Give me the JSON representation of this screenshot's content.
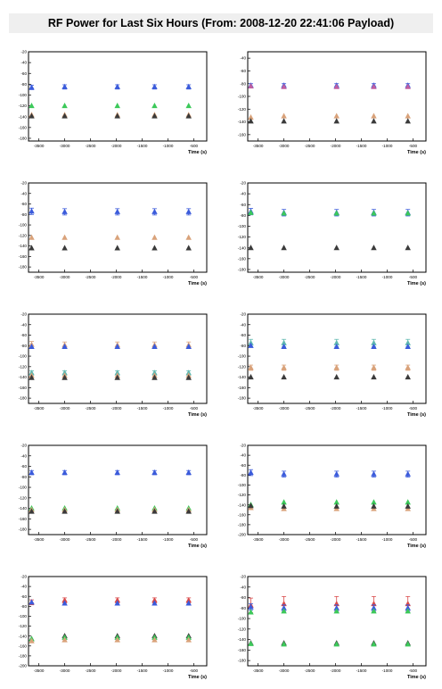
{
  "title": "RF Power for Last Six Hours (From: 2008-12-20 22:41:06 Payload)",
  "colors": {
    "blue": "#3b5bdb",
    "green": "#3cc95a",
    "orange": "#d9a27a",
    "dark": "#3a3a3a",
    "red": "#d94a4a",
    "teal": "#5fb8b0",
    "errbar_teal": "#4fb0a8",
    "errbar_red": "#c04040"
  },
  "chart_data": [
    {
      "type": "scatter",
      "xlabel": "Time (s)",
      "xlim": [
        -3700,
        -250
      ],
      "xticks": [
        -3500,
        -3000,
        -2500,
        -2000,
        -1500,
        -1000,
        -500
      ],
      "ylim": [
        -185,
        -20
      ],
      "yticks": [
        -20,
        -40,
        -60,
        -80,
        -100,
        -120,
        -140,
        -160,
        -180
      ],
      "x": [
        -3640,
        -3000,
        -1980,
        -1260,
        -600
      ],
      "series": [
        {
          "color": "#3b5bdb",
          "y": [
            -86,
            -85,
            -85,
            -85,
            -85
          ],
          "err": 4
        },
        {
          "color": "#3cc95a",
          "y": [
            -120,
            -120,
            -120,
            -120,
            -120
          ]
        },
        {
          "color": "#d9a27a",
          "y": [
            -137,
            -137,
            -137,
            -137,
            -137
          ]
        },
        {
          "color": "#3a3a3a",
          "y": [
            -139,
            -139,
            -139,
            -139,
            -139
          ]
        }
      ]
    },
    {
      "type": "scatter",
      "xlabel": "Time (s)",
      "xlim": [
        -3700,
        -250
      ],
      "xticks": [
        -3500,
        -3000,
        -2500,
        -2000,
        -1500,
        -1000,
        -500
      ],
      "ylim": [
        -170,
        -30
      ],
      "yticks": [
        -40,
        -60,
        -80,
        -100,
        -120,
        -140,
        -160
      ],
      "x": [
        -3640,
        -3000,
        -1980,
        -1260,
        -600
      ],
      "series": [
        {
          "color": "#3b5bdb",
          "y": [
            -83,
            -83,
            -83,
            -83,
            -83
          ],
          "err": 3
        },
        {
          "color": "#c05fa0",
          "y": [
            -84,
            -85,
            -85,
            -85,
            -85
          ]
        },
        {
          "color": "#d9a27a",
          "y": [
            -133,
            -131,
            -131,
            -131,
            -131
          ]
        },
        {
          "color": "#3a3a3a",
          "y": [
            -139,
            -139,
            -139,
            -139,
            -139
          ]
        }
      ]
    },
    {
      "type": "scatter",
      "xlabel": "Time (s)",
      "xlim": [
        -3700,
        -250
      ],
      "xticks": [
        -3500,
        -3000,
        -2500,
        -2000,
        -1500,
        -1000,
        -500
      ],
      "ylim": [
        -190,
        -20
      ],
      "yticks": [
        -20,
        -40,
        -60,
        -80,
        -100,
        -120,
        -140,
        -160,
        -180
      ],
      "x": [
        -3640,
        -3000,
        -1980,
        -1260,
        -600
      ],
      "series": [
        {
          "color": "#3b5bdb",
          "y": [
            -74,
            -75,
            -75,
            -75,
            -75
          ],
          "err": 6
        },
        {
          "color": "#d9a27a",
          "y": [
            -124,
            -124,
            -124,
            -124,
            -124
          ]
        },
        {
          "color": "#3a3a3a",
          "y": [
            -144,
            -144,
            -144,
            -144,
            -144
          ]
        }
      ]
    },
    {
      "type": "scatter",
      "xlabel": "Time (s)",
      "xlim": [
        -3700,
        -250
      ],
      "xticks": [
        -3500,
        -3000,
        -2500,
        -2000,
        -1500,
        -1000,
        -500
      ],
      "ylim": [
        -185,
        -20
      ],
      "yticks": [
        -20,
        -40,
        -60,
        -80,
        -100,
        -120,
        -140,
        -160,
        -180
      ],
      "x": [
        -3640,
        -3000,
        -1980,
        -1260,
        -600
      ],
      "series": [
        {
          "color": "#3b5bdb",
          "y": [
            -73,
            -75,
            -75,
            -75,
            -75
          ],
          "err": 6
        },
        {
          "color": "#3cc95a",
          "y": [
            -75,
            -76,
            -76,
            -76,
            -76
          ]
        },
        {
          "color": "#3a3a3a",
          "y": [
            -140,
            -140,
            -140,
            -140,
            -140
          ]
        }
      ]
    },
    {
      "type": "scatter",
      "xlabel": "Time (s)",
      "xlim": [
        -3700,
        -250
      ],
      "xticks": [
        -3500,
        -3000,
        -2500,
        -2000,
        -1500,
        -1000,
        -500
      ],
      "ylim": [
        -190,
        -20
      ],
      "yticks": [
        -20,
        -40,
        -60,
        -80,
        -100,
        -120,
        -140,
        -160,
        -180
      ],
      "x": [
        -3640,
        -3000,
        -1980,
        -1260,
        -600
      ],
      "series": [
        {
          "color": "#d9a27a",
          "y": [
            -78,
            -79,
            -79,
            -79,
            -79
          ],
          "err": 6
        },
        {
          "color": "#3b5bdb",
          "y": [
            -82,
            -82,
            -82,
            -82,
            -82
          ]
        },
        {
          "color": "#5fb8b0",
          "y": [
            -132,
            -132,
            -132,
            -132,
            -132
          ],
          "err": 4
        },
        {
          "color": "#d9a27a",
          "y": [
            -137,
            -137,
            -137,
            -137,
            -137
          ]
        },
        {
          "color": "#3a3a3a",
          "y": [
            -141,
            -141,
            -141,
            -141,
            -141
          ]
        }
      ]
    },
    {
      "type": "scatter",
      "xlabel": "Time (s)",
      "xlim": [
        -3700,
        -250
      ],
      "xticks": [
        -3500,
        -3000,
        -2500,
        -2000,
        -1500,
        -1000,
        -500
      ],
      "ylim": [
        -190,
        -20
      ],
      "yticks": [
        -20,
        -40,
        -60,
        -80,
        -100,
        -120,
        -140,
        -160,
        -180
      ],
      "x": [
        -3640,
        -3000,
        -1980,
        -1260,
        -600
      ],
      "series": [
        {
          "color": "#5fb8b0",
          "y": [
            -75,
            -75,
            -75,
            -75,
            -75
          ],
          "err": 7
        },
        {
          "color": "#3b5bdb",
          "y": [
            -80,
            -82,
            -82,
            -82,
            -82
          ]
        },
        {
          "color": "#d9a27a",
          "y": [
            -122,
            -122,
            -122,
            -122,
            -122
          ],
          "err": 5
        },
        {
          "color": "#3a3a3a",
          "y": [
            -140,
            -140,
            -140,
            -140,
            -140
          ]
        }
      ]
    },
    {
      "type": "scatter",
      "xlabel": "Time (s)",
      "xlim": [
        -3700,
        -250
      ],
      "xticks": [
        -3500,
        -3000,
        -2500,
        -2000,
        -1500,
        -1000,
        -500
      ],
      "ylim": [
        -190,
        -20
      ],
      "yticks": [
        -20,
        -40,
        -60,
        -80,
        -100,
        -120,
        -140,
        -160,
        -180
      ],
      "x": [
        -3640,
        -3000,
        -1980,
        -1260,
        -600
      ],
      "series": [
        {
          "color": "#3b5bdb",
          "y": [
            -72,
            -72,
            -72,
            -72,
            -72
          ],
          "err": 4
        },
        {
          "color": "#3cc95a",
          "y": [
            -140,
            -140,
            -140,
            -140,
            -140
          ]
        },
        {
          "color": "#d9a27a",
          "y": [
            -143,
            -143,
            -143,
            -143,
            -143
          ]
        },
        {
          "color": "#3a3a3a",
          "y": [
            -146,
            -146,
            -146,
            -146,
            -146
          ]
        }
      ]
    },
    {
      "type": "scatter",
      "xlabel": "Time (s)",
      "xlim": [
        -3700,
        -250
      ],
      "xticks": [
        -3500,
        -3000,
        -2500,
        -2000,
        -1500,
        -1000,
        -500
      ],
      "ylim": [
        -200,
        -20
      ],
      "yticks": [
        -20,
        -40,
        -60,
        -80,
        -100,
        -120,
        -140,
        -160,
        -180,
        -200
      ],
      "x": [
        -3640,
        -3000,
        -1980,
        -1260,
        -600
      ],
      "series": [
        {
          "color": "#3b5bdb",
          "y": [
            -75,
            -78,
            -78,
            -78,
            -78
          ],
          "err": 6
        },
        {
          "color": "#3cc95a",
          "y": [
            -140,
            -135,
            -135,
            -135,
            -135
          ]
        },
        {
          "color": "#d9a27a",
          "y": [
            -146,
            -148,
            -148,
            -148,
            -148
          ]
        },
        {
          "color": "#3a3a3a",
          "y": [
            -142,
            -143,
            -143,
            -143,
            -143
          ]
        }
      ]
    },
    {
      "type": "scatter",
      "xlabel": "Time (s)",
      "xlim": [
        -3700,
        -250
      ],
      "xticks": [
        -3500,
        -3000,
        -2500,
        -2000,
        -1500,
        -1000,
        -500
      ],
      "ylim": [
        -200,
        -20
      ],
      "yticks": [
        -20,
        -40,
        -60,
        -80,
        -100,
        -120,
        -140,
        -160,
        -180,
        -200
      ],
      "x": [
        -3640,
        -3000,
        -1980,
        -1260,
        -600
      ],
      "series": [
        {
          "color": "#d94a4a",
          "y": [
            -72,
            -68,
            -68,
            -68,
            -68
          ],
          "err": 5
        },
        {
          "color": "#3b5bdb",
          "y": [
            -72,
            -74,
            -74,
            -74,
            -74
          ]
        },
        {
          "color": "#3a3a3a",
          "y": [
            -146,
            -140,
            -140,
            -140,
            -140
          ]
        },
        {
          "color": "#3cc95a",
          "y": [
            -146,
            -143,
            -143,
            -143,
            -143
          ]
        },
        {
          "color": "#d9a27a",
          "y": [
            -150,
            -148,
            -148,
            -148,
            -148
          ]
        }
      ]
    },
    {
      "type": "scatter",
      "xlabel": "Time (s)",
      "xlim": [
        -3700,
        -250
      ],
      "xticks": [
        -3500,
        -3000,
        -2500,
        -2000,
        -1500,
        -1000,
        -500
      ],
      "ylim": [
        -190,
        -20
      ],
      "yticks": [
        -20,
        -40,
        -60,
        -80,
        -100,
        -120,
        -140,
        -160,
        -180
      ],
      "x": [
        -3640,
        -3000,
        -1980,
        -1260,
        -600
      ],
      "series": [
        {
          "color": "#d94a4a",
          "y": [
            -75,
            -72,
            -72,
            -72,
            -72
          ],
          "err": 14
        },
        {
          "color": "#3b5bdb",
          "y": [
            -78,
            -80,
            -80,
            -80,
            -80
          ],
          "err": 6
        },
        {
          "color": "#3cc95a",
          "y": [
            -88,
            -86,
            -86,
            -86,
            -86
          ]
        },
        {
          "color": "#3a3a3a",
          "y": [
            -147,
            -147,
            -147,
            -147,
            -147
          ]
        },
        {
          "color": "#3cc95a",
          "y": [
            -148,
            -149,
            -149,
            -149,
            -149
          ]
        }
      ]
    }
  ]
}
